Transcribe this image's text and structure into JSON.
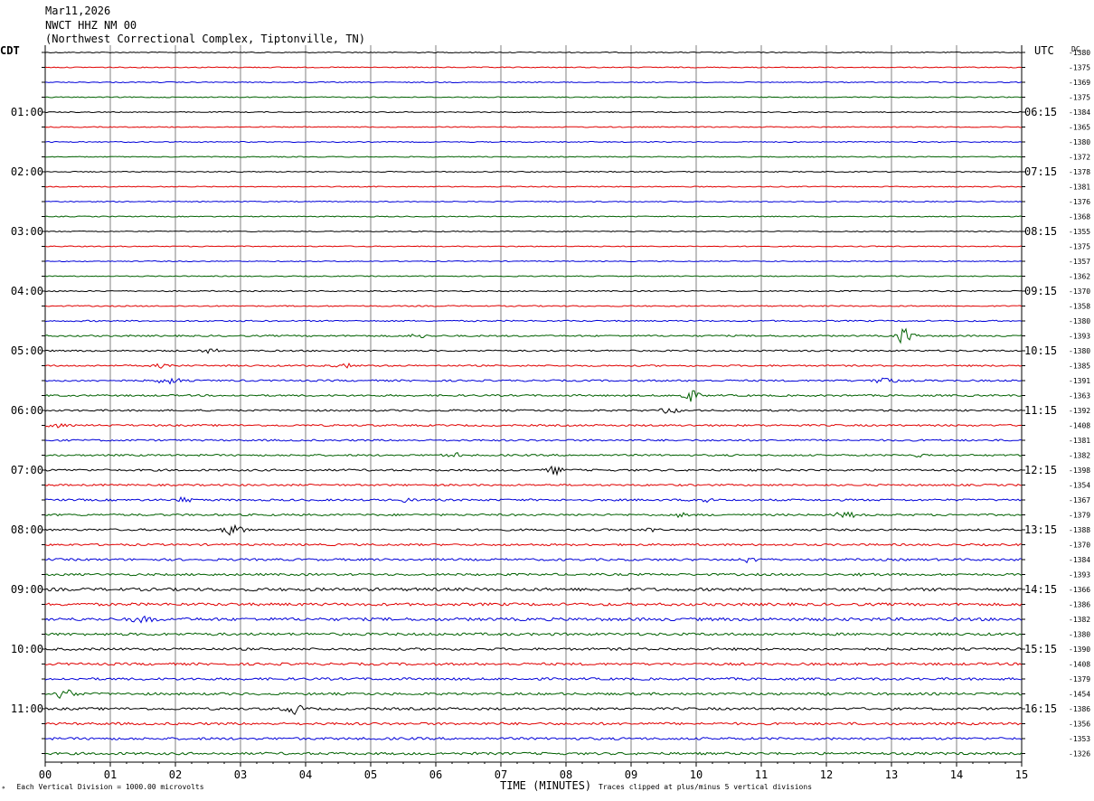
{
  "header": {
    "date": "Mar11,2026",
    "station": "NWCT HHZ NM 00",
    "location": "(Northwest Correctional Complex, Tiptonville, TN)"
  },
  "left_zone": "CDT",
  "right_zone": "UTC",
  "dc_label": "DC",
  "footer": {
    "scale_note": "Each Vertical Division = 1000.00 microvolts",
    "clip_note": "Traces clipped at plus/minus 5 vertical divisions"
  },
  "colors": {
    "trace_cycle": [
      "#000000",
      "#e00000",
      "#0000d8",
      "#006000"
    ],
    "grid": "#808080"
  },
  "chart_data": {
    "type": "line",
    "title": "",
    "xlabel": "TIME (MINUTES)",
    "xlim": [
      0,
      15
    ],
    "x_ticks": [
      "00",
      "01",
      "02",
      "03",
      "04",
      "05",
      "06",
      "07",
      "08",
      "09",
      "10",
      "11",
      "12",
      "13",
      "14",
      "15"
    ],
    "grid": true,
    "left_time_labels": [
      {
        "row": 4,
        "label": "01:00"
      },
      {
        "row": 8,
        "label": "02:00"
      },
      {
        "row": 12,
        "label": "03:00"
      },
      {
        "row": 16,
        "label": "04:00"
      },
      {
        "row": 20,
        "label": "05:00"
      },
      {
        "row": 24,
        "label": "06:00"
      },
      {
        "row": 28,
        "label": "07:00"
      },
      {
        "row": 32,
        "label": "08:00"
      },
      {
        "row": 36,
        "label": "09:00"
      },
      {
        "row": 40,
        "label": "10:00"
      },
      {
        "row": 44,
        "label": "11:00"
      }
    ],
    "right_time_labels": [
      {
        "row": 4,
        "label": "06:15"
      },
      {
        "row": 8,
        "label": "07:15"
      },
      {
        "row": 12,
        "label": "08:15"
      },
      {
        "row": 16,
        "label": "09:15"
      },
      {
        "row": 20,
        "label": "10:15"
      },
      {
        "row": 24,
        "label": "11:15"
      },
      {
        "row": 28,
        "label": "12:15"
      },
      {
        "row": 32,
        "label": "13:15"
      },
      {
        "row": 36,
        "label": "14:15"
      },
      {
        "row": 40,
        "label": "15:15"
      },
      {
        "row": 44,
        "label": "16:15"
      }
    ],
    "dc_offsets": [
      "-1380",
      "-1375",
      "-1369",
      "-1375",
      "-1384",
      "-1365",
      "-1380",
      "-1372",
      "-1378",
      "-1381",
      "-1376",
      "-1368",
      "-1355",
      "-1375",
      "-1357",
      "-1362",
      "-1370",
      "-1358",
      "-1380",
      "-1393",
      "-1380",
      "-1385",
      "-1391",
      "-1363",
      "-1392",
      "-1408",
      "-1381",
      "-1382",
      "-1398",
      "-1354",
      "-1367",
      "-1379",
      "-1388",
      "-1370",
      "-1384",
      "-1393",
      "-1366",
      "-1386",
      "-1382",
      "-1380",
      "-1390",
      "-1408",
      "-1379",
      "-1454",
      "-1386",
      "-1356",
      "-1353",
      "-1326"
    ],
    "noise_level": [
      0.5,
      0.5,
      0.5,
      0.5,
      0.5,
      0.5,
      0.5,
      0.5,
      0.5,
      0.5,
      0.5,
      0.5,
      0.5,
      0.5,
      0.5,
      0.5,
      0.6,
      0.6,
      0.7,
      0.8,
      0.8,
      0.8,
      0.9,
      0.9,
      0.9,
      0.9,
      0.9,
      0.9,
      1.0,
      0.9,
      1.0,
      1.0,
      1.0,
      1.0,
      1.1,
      1.1,
      1.5,
      1.4,
      1.5,
      1.3,
      1.2,
      1.2,
      1.2,
      1.2,
      1.2,
      1.2,
      1.2,
      1.2
    ],
    "events": [
      {
        "row": 19,
        "minute": 5.7,
        "amp": 3
      },
      {
        "row": 19,
        "minute": 13.2,
        "amp": 9
      },
      {
        "row": 20,
        "minute": 2.5,
        "amp": 3
      },
      {
        "row": 21,
        "minute": 1.8,
        "amp": 4
      },
      {
        "row": 21,
        "minute": 4.6,
        "amp": 3
      },
      {
        "row": 22,
        "minute": 1.9,
        "amp": 5
      },
      {
        "row": 22,
        "minute": 12.9,
        "amp": 5
      },
      {
        "row": 23,
        "minute": 9.9,
        "amp": 8
      },
      {
        "row": 24,
        "minute": 9.6,
        "amp": 4
      },
      {
        "row": 25,
        "minute": 0.1,
        "amp": 4
      },
      {
        "row": 27,
        "minute": 6.3,
        "amp": 3
      },
      {
        "row": 27,
        "minute": 13.5,
        "amp": 3
      },
      {
        "row": 28,
        "minute": 7.8,
        "amp": 6
      },
      {
        "row": 30,
        "minute": 2.2,
        "amp": 4
      },
      {
        "row": 30,
        "minute": 5.6,
        "amp": 4
      },
      {
        "row": 30,
        "minute": 10.1,
        "amp": 3
      },
      {
        "row": 31,
        "minute": 9.8,
        "amp": 3
      },
      {
        "row": 31,
        "minute": 12.3,
        "amp": 4
      },
      {
        "row": 32,
        "minute": 2.9,
        "amp": 7
      },
      {
        "row": 32,
        "minute": 9.3,
        "amp": 3
      },
      {
        "row": 34,
        "minute": 10.8,
        "amp": 4
      },
      {
        "row": 35,
        "minute": 12.6,
        "amp": 3
      },
      {
        "row": 38,
        "minute": 1.5,
        "amp": 5
      },
      {
        "row": 43,
        "minute": 0.3,
        "amp": 6
      },
      {
        "row": 44,
        "minute": 3.8,
        "amp": 6
      }
    ]
  }
}
